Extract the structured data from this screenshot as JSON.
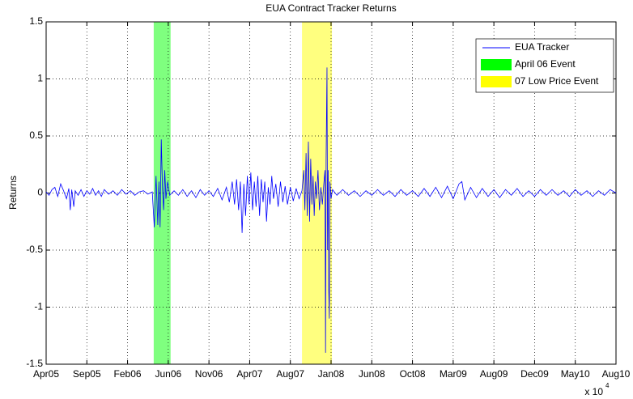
{
  "chart_data": {
    "type": "line",
    "title": "EUA Contract Tracker Returns",
    "y_label": "Returns",
    "x_multiplier": {
      "base": "x 10",
      "exponent": "4"
    },
    "xlim": [
      38443,
      40403
    ],
    "ylim": [
      -1.5,
      1.5
    ],
    "xticks": [
      {
        "value": 38443,
        "label": "Apr05"
      },
      {
        "value": 38583,
        "label": "Sep05"
      },
      {
        "value": 38723,
        "label": "Feb06"
      },
      {
        "value": 38863,
        "label": "Jun06"
      },
      {
        "value": 39003,
        "label": "Nov06"
      },
      {
        "value": 39143,
        "label": "Apr07"
      },
      {
        "value": 39283,
        "label": "Aug07"
      },
      {
        "value": 39423,
        "label": "Jan08"
      },
      {
        "value": 39563,
        "label": "Jun08"
      },
      {
        "value": 39703,
        "label": "Oct08"
      },
      {
        "value": 39843,
        "label": "Mar09"
      },
      {
        "value": 39983,
        "label": "Aug09"
      },
      {
        "value": 40123,
        "label": "Dec09"
      },
      {
        "value": 40263,
        "label": "May10"
      },
      {
        "value": 40403,
        "label": "Aug10"
      }
    ],
    "yticks": [
      -1.5,
      -1,
      -0.5,
      0,
      0.5,
      1,
      1.5
    ],
    "grid": true,
    "legend": "upper right",
    "bands": [
      {
        "name": "April 06 Event",
        "color": "#00ff00",
        "start": 38813,
        "end": 38871
      },
      {
        "name": "07 Low Price Event",
        "color": "#ffff00",
        "start": 39323,
        "end": 39426
      }
    ],
    "x": [
      38443,
      38453,
      38463,
      38473,
      38483,
      38493,
      38503,
      38513,
      38521,
      38526,
      38531,
      38538,
      38543,
      38553,
      38563,
      38573,
      38583,
      38593,
      38603,
      38613,
      38623,
      38633,
      38643,
      38658,
      38673,
      38688,
      38703,
      38718,
      38733,
      38748,
      38763,
      38778,
      38793,
      38808,
      38815,
      38821,
      38827,
      38831,
      38835,
      38839,
      38843,
      38847,
      38851,
      38855,
      38861,
      38868,
      38883,
      38898,
      38913,
      38928,
      38943,
      38958,
      38973,
      38988,
      39003,
      39018,
      39033,
      39048,
      39063,
      39073,
      39083,
      39091,
      39098,
      39105,
      39111,
      39117,
      39123,
      39129,
      39135,
      39141,
      39147,
      39153,
      39159,
      39165,
      39171,
      39177,
      39183,
      39189,
      39195,
      39201,
      39207,
      39213,
      39219,
      39225,
      39233,
      39241,
      39249,
      39257,
      39265,
      39273,
      39283,
      39293,
      39303,
      39313,
      39323,
      39329,
      39333,
      39337,
      39341,
      39345,
      39349,
      39353,
      39357,
      39361,
      39365,
      39369,
      39373,
      39378,
      39383,
      39388,
      39393,
      39398,
      39402,
      39404,
      39406,
      39409,
      39411,
      39413,
      39415,
      39417,
      39419,
      39423,
      39428,
      39443,
      39463,
      39483,
      39503,
      39523,
      39543,
      39563,
      39583,
      39603,
      39623,
      39643,
      39663,
      39683,
      39703,
      39723,
      39743,
      39763,
      39783,
      39803,
      39823,
      39843,
      39863,
      39873,
      39883,
      39903,
      39923,
      39943,
      39963,
      39983,
      40003,
      40023,
      40043,
      40063,
      40083,
      40103,
      40123,
      40143,
      40163,
      40183,
      40203,
      40223,
      40243,
      40263,
      40283,
      40303,
      40323,
      40343,
      40363,
      40383,
      40403
    ],
    "series": [
      {
        "name": "EUA Tracker",
        "color": "#0000ff",
        "values": [
          0.01,
          -0.02,
          0.03,
          0.05,
          -0.03,
          0.08,
          0.02,
          -0.05,
          0.04,
          -0.15,
          0.03,
          -0.12,
          0.02,
          -0.02,
          0.03,
          -0.03,
          0.02,
          -0.01,
          0.04,
          -0.02,
          0.02,
          -0.03,
          0.03,
          -0.01,
          0.02,
          -0.02,
          0.03,
          -0.01,
          0.02,
          -0.02,
          0.01,
          0.02,
          -0.01,
          0.01,
          -0.3,
          0.15,
          -0.28,
          0.1,
          -0.3,
          0.47,
          0.05,
          -0.15,
          0.2,
          -0.05,
          0.1,
          -0.02,
          0.02,
          -0.02,
          0.03,
          -0.03,
          0.02,
          -0.04,
          0.03,
          -0.02,
          0.02,
          -0.03,
          0.04,
          -0.06,
          0.05,
          -0.08,
          0.1,
          -0.1,
          0.12,
          -0.15,
          0.1,
          -0.35,
          0.08,
          -0.2,
          0.15,
          -0.1,
          0.18,
          -0.15,
          0.1,
          -0.12,
          0.15,
          -0.2,
          0.12,
          -0.08,
          0.1,
          -0.25,
          0.05,
          -0.1,
          0.15,
          -0.05,
          0.08,
          -0.12,
          0.1,
          -0.08,
          0.06,
          -0.1,
          0.05,
          -0.07,
          0.04,
          -0.05,
          0.02,
          0.2,
          -0.15,
          0.35,
          -0.2,
          0.45,
          -0.25,
          0.3,
          -0.1,
          0.15,
          -0.2,
          0.1,
          -0.05,
          0.2,
          -0.15,
          0.05,
          -0.1,
          0.08,
          0.2,
          -1.4,
          0.3,
          1.1,
          -0.5,
          0.2,
          -0.85,
          -1.1,
          0.1,
          -0.05,
          0.03,
          -0.02,
          0.03,
          -0.02,
          0.02,
          -0.03,
          0.02,
          -0.02,
          0.03,
          -0.02,
          0.02,
          -0.03,
          0.03,
          -0.02,
          0.02,
          -0.03,
          0.04,
          -0.03,
          0.05,
          -0.04,
          0.06,
          -0.05,
          0.08,
          0.1,
          -0.06,
          0.05,
          -0.04,
          0.04,
          -0.03,
          0.03,
          -0.04,
          0.03,
          -0.02,
          0.04,
          -0.03,
          0.02,
          -0.03,
          0.03,
          -0.02,
          0.03,
          -0.02,
          0.02,
          -0.03,
          0.03,
          -0.02,
          0.02,
          -0.03,
          0.02,
          -0.02,
          0.03,
          0
        ]
      }
    ]
  }
}
